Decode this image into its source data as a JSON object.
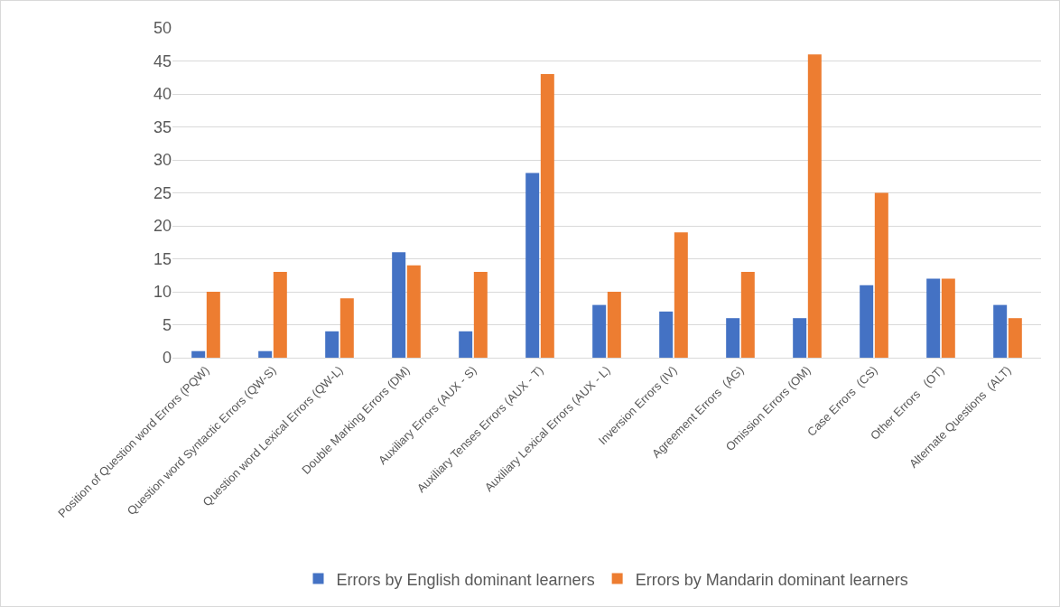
{
  "chart_data": {
    "type": "bar",
    "categories": [
      "Position of Question word Errors (PQW)",
      "Question word Syntactic Errors (QW-S)",
      "Question word Lexical Errors (QW-L)",
      "Double Marking Errors (DM)",
      "Auxiliary Errors (AUX - S)",
      "Auxiliary Tenses Errors (AUX - T)",
      "Auxiliary Lexical Errors (AUX - L)",
      "Inversion Errors (IV)",
      "Agreement Errors  (AG)",
      "Omission Errors (OM)",
      "Case Errors  (CS)",
      "Other Errors   (OT)",
      "Alternate Questions  (ALT)"
    ],
    "series": [
      {
        "name": "Errors by English dominant learners",
        "color": "#4472c4",
        "values": [
          1,
          1,
          4,
          16,
          4,
          28,
          8,
          7,
          6,
          6,
          11,
          12,
          8
        ]
      },
      {
        "name": "Errors by Mandarin dominant learners",
        "color": "#ed7d31",
        "values": [
          10,
          13,
          9,
          14,
          13,
          43,
          10,
          19,
          13,
          46,
          25,
          12,
          6
        ]
      }
    ],
    "ylim": [
      0,
      50
    ],
    "yticks": [
      0,
      5,
      10,
      15,
      20,
      25,
      30,
      35,
      40,
      45,
      50
    ],
    "grid": "y",
    "legend": "bottom"
  }
}
